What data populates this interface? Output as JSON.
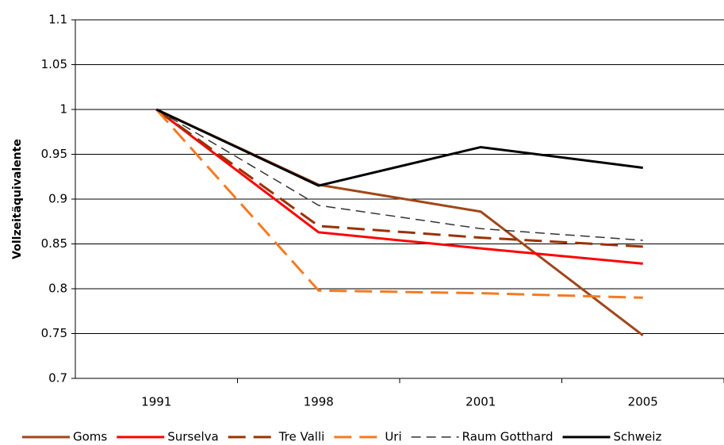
{
  "chart_data": {
    "type": "line",
    "y_label": "Vollzeitäquivalente",
    "categories": [
      "1991",
      "1998",
      "2001",
      "2005"
    ],
    "ylim": [
      0.7,
      1.1
    ],
    "yticks": [
      0.7,
      0.75,
      0.8,
      0.85,
      0.9,
      0.95,
      1,
      1.05,
      1.1
    ],
    "grid": true,
    "legend": "bottom",
    "series": [
      {
        "name": "Goms",
        "color": "#a0461a",
        "style": "solid",
        "values": [
          1,
          0.916,
          0.886,
          0.748
        ]
      },
      {
        "name": "Surselva",
        "color": "#ff0000",
        "style": "solid",
        "values": [
          1,
          0.863,
          0.845,
          0.828
        ]
      },
      {
        "name": "Tre Valli",
        "color": "#993300",
        "style": "long",
        "values": [
          1,
          0.87,
          0.857,
          0.847
        ]
      },
      {
        "name": "Uri",
        "color": "#f57a22",
        "style": "long",
        "values": [
          1,
          0.798,
          0.795,
          0.79
        ]
      },
      {
        "name": "Raum Gotthard",
        "color": "#333333",
        "style": "short",
        "values": [
          1,
          0.893,
          0.867,
          0.854
        ]
      },
      {
        "name": "Schweiz",
        "color": "#000000",
        "style": "solid",
        "values": [
          1,
          0.915,
          0.958,
          0.935
        ]
      }
    ]
  }
}
